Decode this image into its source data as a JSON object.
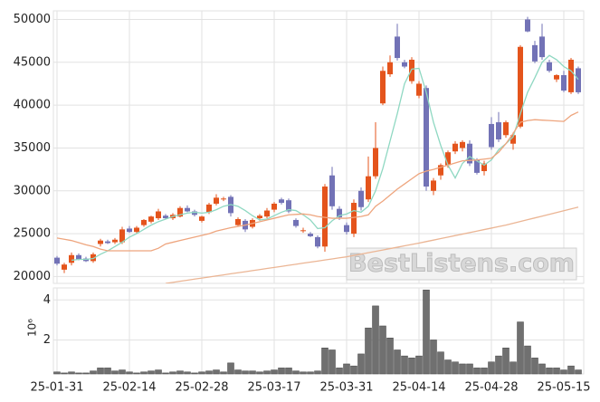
{
  "chart_data": [
    {
      "type": "candlestick",
      "up_color": "#e4541c",
      "down_color": "#7272b6",
      "ylim": [
        19200,
        51000
      ],
      "yticks": [
        20000,
        25000,
        30000,
        35000,
        40000,
        45000,
        50000
      ],
      "grid": true,
      "watermark": "BestListens.com",
      "open": [
        22200,
        20800,
        21600,
        22500,
        22100,
        21800,
        23800,
        24100,
        24000,
        24000,
        25600,
        25200,
        26000,
        26400,
        26800,
        27100,
        26800,
        27000,
        28000,
        27600,
        26500,
        27500,
        28500,
        29000,
        29300,
        26000,
        26500,
        25800,
        26800,
        27000,
        27800,
        29000,
        28900,
        26600,
        25300,
        25000,
        24600,
        23500,
        31800,
        27900,
        26000,
        25000,
        30000,
        29000,
        31700,
        40200,
        43600,
        48000,
        45000,
        42800,
        41100,
        42000,
        30000,
        31800,
        33000,
        34600,
        35000,
        35500,
        33600,
        32300,
        37800,
        38000,
        36500,
        35500,
        37500,
        50000,
        47000,
        48000,
        45000,
        43000,
        43500,
        41500,
        44300
      ],
      "high": [
        22400,
        21600,
        22800,
        22700,
        22300,
        22800,
        24400,
        24300,
        24500,
        25800,
        25900,
        25900,
        26700,
        27100,
        27900,
        27300,
        27400,
        28200,
        28300,
        27800,
        27100,
        28600,
        29600,
        29300,
        29500,
        26900,
        26700,
        26800,
        27300,
        28000,
        28700,
        29200,
        29100,
        26800,
        25700,
        25200,
        24800,
        30800,
        32800,
        28200,
        26300,
        29000,
        30400,
        34000,
        38000,
        44500,
        45800,
        49500,
        45300,
        45600,
        42800,
        42300,
        31500,
        33200,
        34700,
        35800,
        35900,
        35900,
        33800,
        33500,
        38600,
        39200,
        38200,
        36800,
        47000,
        50300,
        47500,
        49500,
        45300,
        43600,
        44000,
        45500,
        44500
      ],
      "low": [
        21300,
        20400,
        21300,
        21900,
        21700,
        21600,
        23500,
        23800,
        23800,
        23800,
        25100,
        25000,
        25800,
        26200,
        26600,
        26700,
        26600,
        26900,
        27500,
        27000,
        26300,
        27300,
        28300,
        28800,
        27000,
        25800,
        25200,
        25600,
        26500,
        26800,
        27500,
        28400,
        27400,
        25700,
        25100,
        24600,
        23300,
        22900,
        27800,
        26600,
        24900,
        24600,
        27700,
        28700,
        31400,
        40000,
        43300,
        45200,
        44300,
        42500,
        40800,
        30000,
        29500,
        31300,
        32700,
        34300,
        34600,
        32900,
        31900,
        31800,
        34800,
        35700,
        36200,
        34800,
        37300,
        48500,
        44900,
        45300,
        43800,
        42700,
        41500,
        41300,
        41300
      ],
      "close": [
        21500,
        21400,
        22500,
        22000,
        21800,
        22600,
        24200,
        23900,
        24300,
        25500,
        25200,
        25700,
        26600,
        27000,
        27600,
        26800,
        27200,
        28000,
        27600,
        27200,
        27000,
        28400,
        29200,
        29100,
        27400,
        26700,
        25500,
        26600,
        27100,
        27700,
        28500,
        28600,
        27600,
        25900,
        25400,
        24700,
        23500,
        30500,
        28200,
        26900,
        25200,
        28600,
        28100,
        31700,
        35000,
        44000,
        45000,
        45500,
        44500,
        45300,
        42500,
        30500,
        31200,
        33000,
        34500,
        35500,
        35700,
        33200,
        32100,
        33200,
        35100,
        36000,
        38000,
        36500,
        46800,
        48600,
        45100,
        45600,
        44000,
        43500,
        41700,
        45300,
        41500
      ],
      "ma_lines": [
        {
          "color": "#8fd8c2",
          "values": [
            null,
            null,
            21900,
            22000,
            22000,
            22100,
            22600,
            23000,
            23500,
            24000,
            24600,
            25000,
            25500,
            26000,
            26400,
            26700,
            27000,
            27200,
            27400,
            27500,
            27400,
            27500,
            27800,
            28200,
            28400,
            28200,
            27700,
            27100,
            26600,
            26700,
            27100,
            27500,
            27800,
            27700,
            27200,
            26600,
            25600,
            25700,
            26500,
            27100,
            27300,
            27700,
            27500,
            28200,
            30000,
            32600,
            35800,
            39000,
            42500,
            44200,
            44300,
            41500,
            38000,
            35300,
            33000,
            31500,
            33200,
            34000,
            33500,
            33000,
            33600,
            34800,
            35500,
            36300,
            39000,
            41500,
            43200,
            45000,
            45800,
            45300,
            44500,
            44000,
            43000
          ]
        },
        {
          "color": "#eea57e",
          "values": [
            24500,
            24350,
            24200,
            23950,
            23700,
            23500,
            23200,
            23000,
            23000,
            23000,
            23000,
            23000,
            23000,
            23000,
            23300,
            23800,
            24000,
            24200,
            24400,
            24600,
            24800,
            25000,
            25300,
            25500,
            25700,
            25850,
            26000,
            26200,
            26400,
            26600,
            26800,
            27000,
            27200,
            27250,
            27300,
            27200,
            27000,
            26900,
            26800,
            26800,
            26800,
            26900,
            27000,
            27200,
            28200,
            28800,
            29500,
            30200,
            30800,
            31400,
            32000,
            32300,
            32500,
            32750,
            33000,
            33250,
            33500,
            33550,
            33600,
            33700,
            33800,
            34500,
            35500,
            36700,
            38000,
            38200,
            38300,
            38250,
            38200,
            38150,
            38100,
            38800,
            39200
          ]
        },
        {
          "color": "#ebb594",
          "values": [
            null,
            null,
            null,
            null,
            null,
            null,
            null,
            null,
            null,
            null,
            null,
            null,
            null,
            null,
            null,
            19200,
            19320,
            19450,
            19570,
            19700,
            19820,
            19940,
            20070,
            20190,
            20320,
            20440,
            20560,
            20690,
            20810,
            20940,
            21060,
            21180,
            21310,
            21430,
            21560,
            21680,
            21800,
            21930,
            22050,
            22180,
            22300,
            22460,
            22620,
            22780,
            22940,
            23100,
            23260,
            23420,
            23580,
            23740,
            23900,
            24080,
            24250,
            24430,
            24600,
            24780,
            24950,
            25130,
            25300,
            25480,
            25650,
            25830,
            26000,
            26210,
            26420,
            26630,
            26840,
            27050,
            27260,
            27470,
            27680,
            27890,
            28100
          ]
        }
      ]
    },
    {
      "type": "bar",
      "color": "#707070",
      "ylim": [
        0.3,
        4.6
      ],
      "yticks": [
        2,
        4
      ],
      "y_scale_label": "10⁶",
      "grid": true,
      "categories": [
        "25-01-31",
        null,
        null,
        null,
        null,
        null,
        null,
        null,
        null,
        null,
        "25-02-14",
        null,
        null,
        null,
        null,
        null,
        null,
        null,
        null,
        null,
        "25-02-28",
        null,
        null,
        null,
        null,
        null,
        null,
        null,
        null,
        null,
        "25-03-17",
        null,
        null,
        null,
        null,
        null,
        null,
        null,
        null,
        null,
        "25-03-31",
        null,
        null,
        null,
        null,
        null,
        null,
        null,
        null,
        null,
        "25-04-14",
        null,
        null,
        null,
        null,
        null,
        null,
        null,
        null,
        null,
        "25-04-28",
        null,
        null,
        null,
        null,
        null,
        null,
        null,
        null,
        null,
        "25-05-15",
        null,
        null
      ],
      "values": [
        0.4,
        0.35,
        0.4,
        0.35,
        0.35,
        0.45,
        0.6,
        0.6,
        0.45,
        0.5,
        0.4,
        0.35,
        0.4,
        0.45,
        0.5,
        0.35,
        0.4,
        0.45,
        0.4,
        0.35,
        0.4,
        0.45,
        0.5,
        0.4,
        0.85,
        0.5,
        0.45,
        0.45,
        0.4,
        0.45,
        0.5,
        0.6,
        0.6,
        0.45,
        0.4,
        0.4,
        0.45,
        1.6,
        1.5,
        0.6,
        0.8,
        0.7,
        1.3,
        2.6,
        3.7,
        2.7,
        2.1,
        1.5,
        1.2,
        1.1,
        1.2,
        4.5,
        2.0,
        1.4,
        1.0,
        0.9,
        0.8,
        0.8,
        0.6,
        0.6,
        0.9,
        1.2,
        1.6,
        0.9,
        2.9,
        1.7,
        1.1,
        0.8,
        0.6,
        0.6,
        0.5,
        0.7,
        0.5
      ]
    }
  ]
}
